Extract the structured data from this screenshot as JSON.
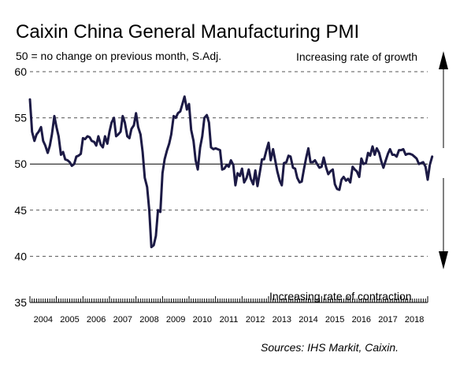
{
  "chart_data": {
    "type": "line",
    "title": "Caixin China General Manufacturing PMI",
    "subtitle": "50 = no change on previous month, S.Adj.",
    "annotations": {
      "growth": "Increasing rate of growth",
      "contraction": "Increasing rate of contraction"
    },
    "source": "Sources: IHS Markit, Caixin.",
    "ylim": [
      35,
      60
    ],
    "yticks": [
      "35",
      "40",
      "45",
      "50",
      "55",
      "60"
    ],
    "xlim": [
      2004.0,
      2019.0
    ],
    "xtick_labels": [
      "2004",
      "2005",
      "2006",
      "2007",
      "2008",
      "2009",
      "2010",
      "2011",
      "2012",
      "2013",
      "2014",
      "2015",
      "2016",
      "2017",
      "2018"
    ],
    "grid": true,
    "legend": "none",
    "colors": {
      "line": "#1c1a45",
      "baseline": "#000000",
      "grid": "#555555"
    },
    "series": [
      {
        "values": [
          [
            2004.0,
            57.0
          ],
          [
            2004.08,
            53.5
          ],
          [
            2004.17,
            52.5
          ],
          [
            2004.25,
            53.2
          ],
          [
            2004.33,
            53.5
          ],
          [
            2004.42,
            54.0
          ],
          [
            2004.5,
            52.5
          ],
          [
            2004.58,
            52.0
          ],
          [
            2004.67,
            51.2
          ],
          [
            2004.75,
            52.0
          ],
          [
            2004.83,
            53.2
          ],
          [
            2004.92,
            55.2
          ],
          [
            2005.0,
            54.0
          ],
          [
            2005.08,
            53.0
          ],
          [
            2005.17,
            51.0
          ],
          [
            2005.25,
            51.3
          ],
          [
            2005.33,
            50.5
          ],
          [
            2005.42,
            50.4
          ],
          [
            2005.5,
            50.2
          ],
          [
            2005.58,
            49.8
          ],
          [
            2005.67,
            50.0
          ],
          [
            2005.75,
            50.8
          ],
          [
            2005.83,
            50.9
          ],
          [
            2005.92,
            51.1
          ],
          [
            2006.0,
            52.8
          ],
          [
            2006.08,
            52.7
          ],
          [
            2006.17,
            53.0
          ],
          [
            2006.25,
            52.9
          ],
          [
            2006.33,
            52.5
          ],
          [
            2006.42,
            52.4
          ],
          [
            2006.5,
            52.0
          ],
          [
            2006.58,
            53.0
          ],
          [
            2006.67,
            52.1
          ],
          [
            2006.75,
            51.8
          ],
          [
            2006.83,
            53.0
          ],
          [
            2006.92,
            52.2
          ],
          [
            2007.0,
            53.5
          ],
          [
            2007.08,
            54.5
          ],
          [
            2007.17,
            55.0
          ],
          [
            2007.25,
            53.0
          ],
          [
            2007.33,
            53.2
          ],
          [
            2007.42,
            53.5
          ],
          [
            2007.5,
            55.2
          ],
          [
            2007.58,
            54.5
          ],
          [
            2007.67,
            53.0
          ],
          [
            2007.75,
            52.8
          ],
          [
            2007.83,
            53.8
          ],
          [
            2007.92,
            54.2
          ],
          [
            2008.0,
            55.5
          ],
          [
            2008.08,
            54.0
          ],
          [
            2008.17,
            53.2
          ],
          [
            2008.25,
            51.3
          ],
          [
            2008.33,
            48.5
          ],
          [
            2008.42,
            47.5
          ],
          [
            2008.5,
            45.0
          ],
          [
            2008.58,
            41.0
          ],
          [
            2008.67,
            41.2
          ],
          [
            2008.75,
            42.2
          ],
          [
            2008.83,
            45.0
          ],
          [
            2008.92,
            44.8
          ],
          [
            2009.0,
            49.0
          ],
          [
            2009.08,
            50.5
          ],
          [
            2009.17,
            51.5
          ],
          [
            2009.25,
            52.2
          ],
          [
            2009.33,
            53.2
          ],
          [
            2009.42,
            55.2
          ],
          [
            2009.5,
            55.0
          ],
          [
            2009.58,
            55.5
          ],
          [
            2009.67,
            55.7
          ],
          [
            2009.75,
            56.5
          ],
          [
            2009.83,
            57.3
          ],
          [
            2009.92,
            55.9
          ],
          [
            2010.0,
            56.5
          ],
          [
            2010.08,
            53.7
          ],
          [
            2010.17,
            52.5
          ],
          [
            2010.25,
            50.4
          ],
          [
            2010.33,
            49.4
          ],
          [
            2010.42,
            51.8
          ],
          [
            2010.5,
            53.0
          ],
          [
            2010.58,
            55.0
          ],
          [
            2010.67,
            55.3
          ],
          [
            2010.75,
            54.5
          ],
          [
            2010.83,
            51.8
          ],
          [
            2010.92,
            51.6
          ],
          [
            2011.0,
            51.7
          ],
          [
            2011.08,
            51.6
          ],
          [
            2011.17,
            51.5
          ],
          [
            2011.25,
            49.4
          ],
          [
            2011.33,
            49.5
          ],
          [
            2011.42,
            49.9
          ],
          [
            2011.5,
            49.7
          ],
          [
            2011.58,
            50.4
          ],
          [
            2011.67,
            49.9
          ],
          [
            2011.75,
            47.7
          ],
          [
            2011.83,
            49.0
          ],
          [
            2011.92,
            48.7
          ],
          [
            2012.0,
            49.5
          ],
          [
            2012.08,
            48.0
          ],
          [
            2012.17,
            48.5
          ],
          [
            2012.25,
            49.4
          ],
          [
            2012.33,
            48.4
          ],
          [
            2012.42,
            47.8
          ],
          [
            2012.5,
            49.3
          ],
          [
            2012.58,
            47.6
          ],
          [
            2012.67,
            49.1
          ],
          [
            2012.75,
            50.5
          ],
          [
            2012.83,
            50.5
          ],
          [
            2012.92,
            51.5
          ],
          [
            2013.0,
            52.3
          ],
          [
            2013.08,
            50.4
          ],
          [
            2013.17,
            51.6
          ],
          [
            2013.25,
            50.4
          ],
          [
            2013.33,
            49.2
          ],
          [
            2013.42,
            48.2
          ],
          [
            2013.5,
            47.7
          ],
          [
            2013.58,
            50.1
          ],
          [
            2013.67,
            50.2
          ],
          [
            2013.75,
            50.9
          ],
          [
            2013.83,
            50.8
          ],
          [
            2013.92,
            49.6
          ],
          [
            2014.0,
            49.5
          ],
          [
            2014.08,
            48.5
          ],
          [
            2014.17,
            48.0
          ],
          [
            2014.25,
            48.1
          ],
          [
            2014.33,
            49.4
          ],
          [
            2014.42,
            50.7
          ],
          [
            2014.5,
            51.7
          ],
          [
            2014.58,
            50.2
          ],
          [
            2014.67,
            50.2
          ],
          [
            2014.75,
            50.4
          ],
          [
            2014.83,
            50.0
          ],
          [
            2014.92,
            49.6
          ],
          [
            2015.0,
            49.7
          ],
          [
            2015.08,
            50.7
          ],
          [
            2015.17,
            49.6
          ],
          [
            2015.25,
            48.9
          ],
          [
            2015.33,
            49.2
          ],
          [
            2015.42,
            49.4
          ],
          [
            2015.5,
            47.8
          ],
          [
            2015.58,
            47.3
          ],
          [
            2015.67,
            47.2
          ],
          [
            2015.75,
            48.3
          ],
          [
            2015.83,
            48.6
          ],
          [
            2015.92,
            48.2
          ],
          [
            2016.0,
            48.4
          ],
          [
            2016.08,
            48.0
          ],
          [
            2016.17,
            49.7
          ],
          [
            2016.25,
            49.4
          ],
          [
            2016.33,
            49.2
          ],
          [
            2016.42,
            48.6
          ],
          [
            2016.5,
            50.6
          ],
          [
            2016.58,
            50.0
          ],
          [
            2016.67,
            50.1
          ],
          [
            2016.75,
            51.2
          ],
          [
            2016.83,
            50.9
          ],
          [
            2016.92,
            51.9
          ],
          [
            2017.0,
            51.0
          ],
          [
            2017.08,
            51.7
          ],
          [
            2017.17,
            51.2
          ],
          [
            2017.25,
            50.3
          ],
          [
            2017.33,
            49.6
          ],
          [
            2017.42,
            50.4
          ],
          [
            2017.5,
            51.1
          ],
          [
            2017.58,
            51.6
          ],
          [
            2017.67,
            51.0
          ],
          [
            2017.75,
            51.0
          ],
          [
            2017.83,
            50.8
          ],
          [
            2017.92,
            51.5
          ],
          [
            2018.0,
            51.5
          ],
          [
            2018.08,
            51.6
          ],
          [
            2018.17,
            51.0
          ],
          [
            2018.25,
            51.1
          ],
          [
            2018.33,
            51.1
          ],
          [
            2018.42,
            51.0
          ],
          [
            2018.5,
            50.8
          ],
          [
            2018.58,
            50.6
          ],
          [
            2018.67,
            50.0
          ],
          [
            2018.75,
            50.1
          ],
          [
            2018.83,
            50.2
          ],
          [
            2018.92,
            49.7
          ],
          [
            2019.0,
            48.3
          ],
          [
            2019.08,
            49.9
          ],
          [
            2019.17,
            50.8
          ]
        ]
      }
    ]
  }
}
